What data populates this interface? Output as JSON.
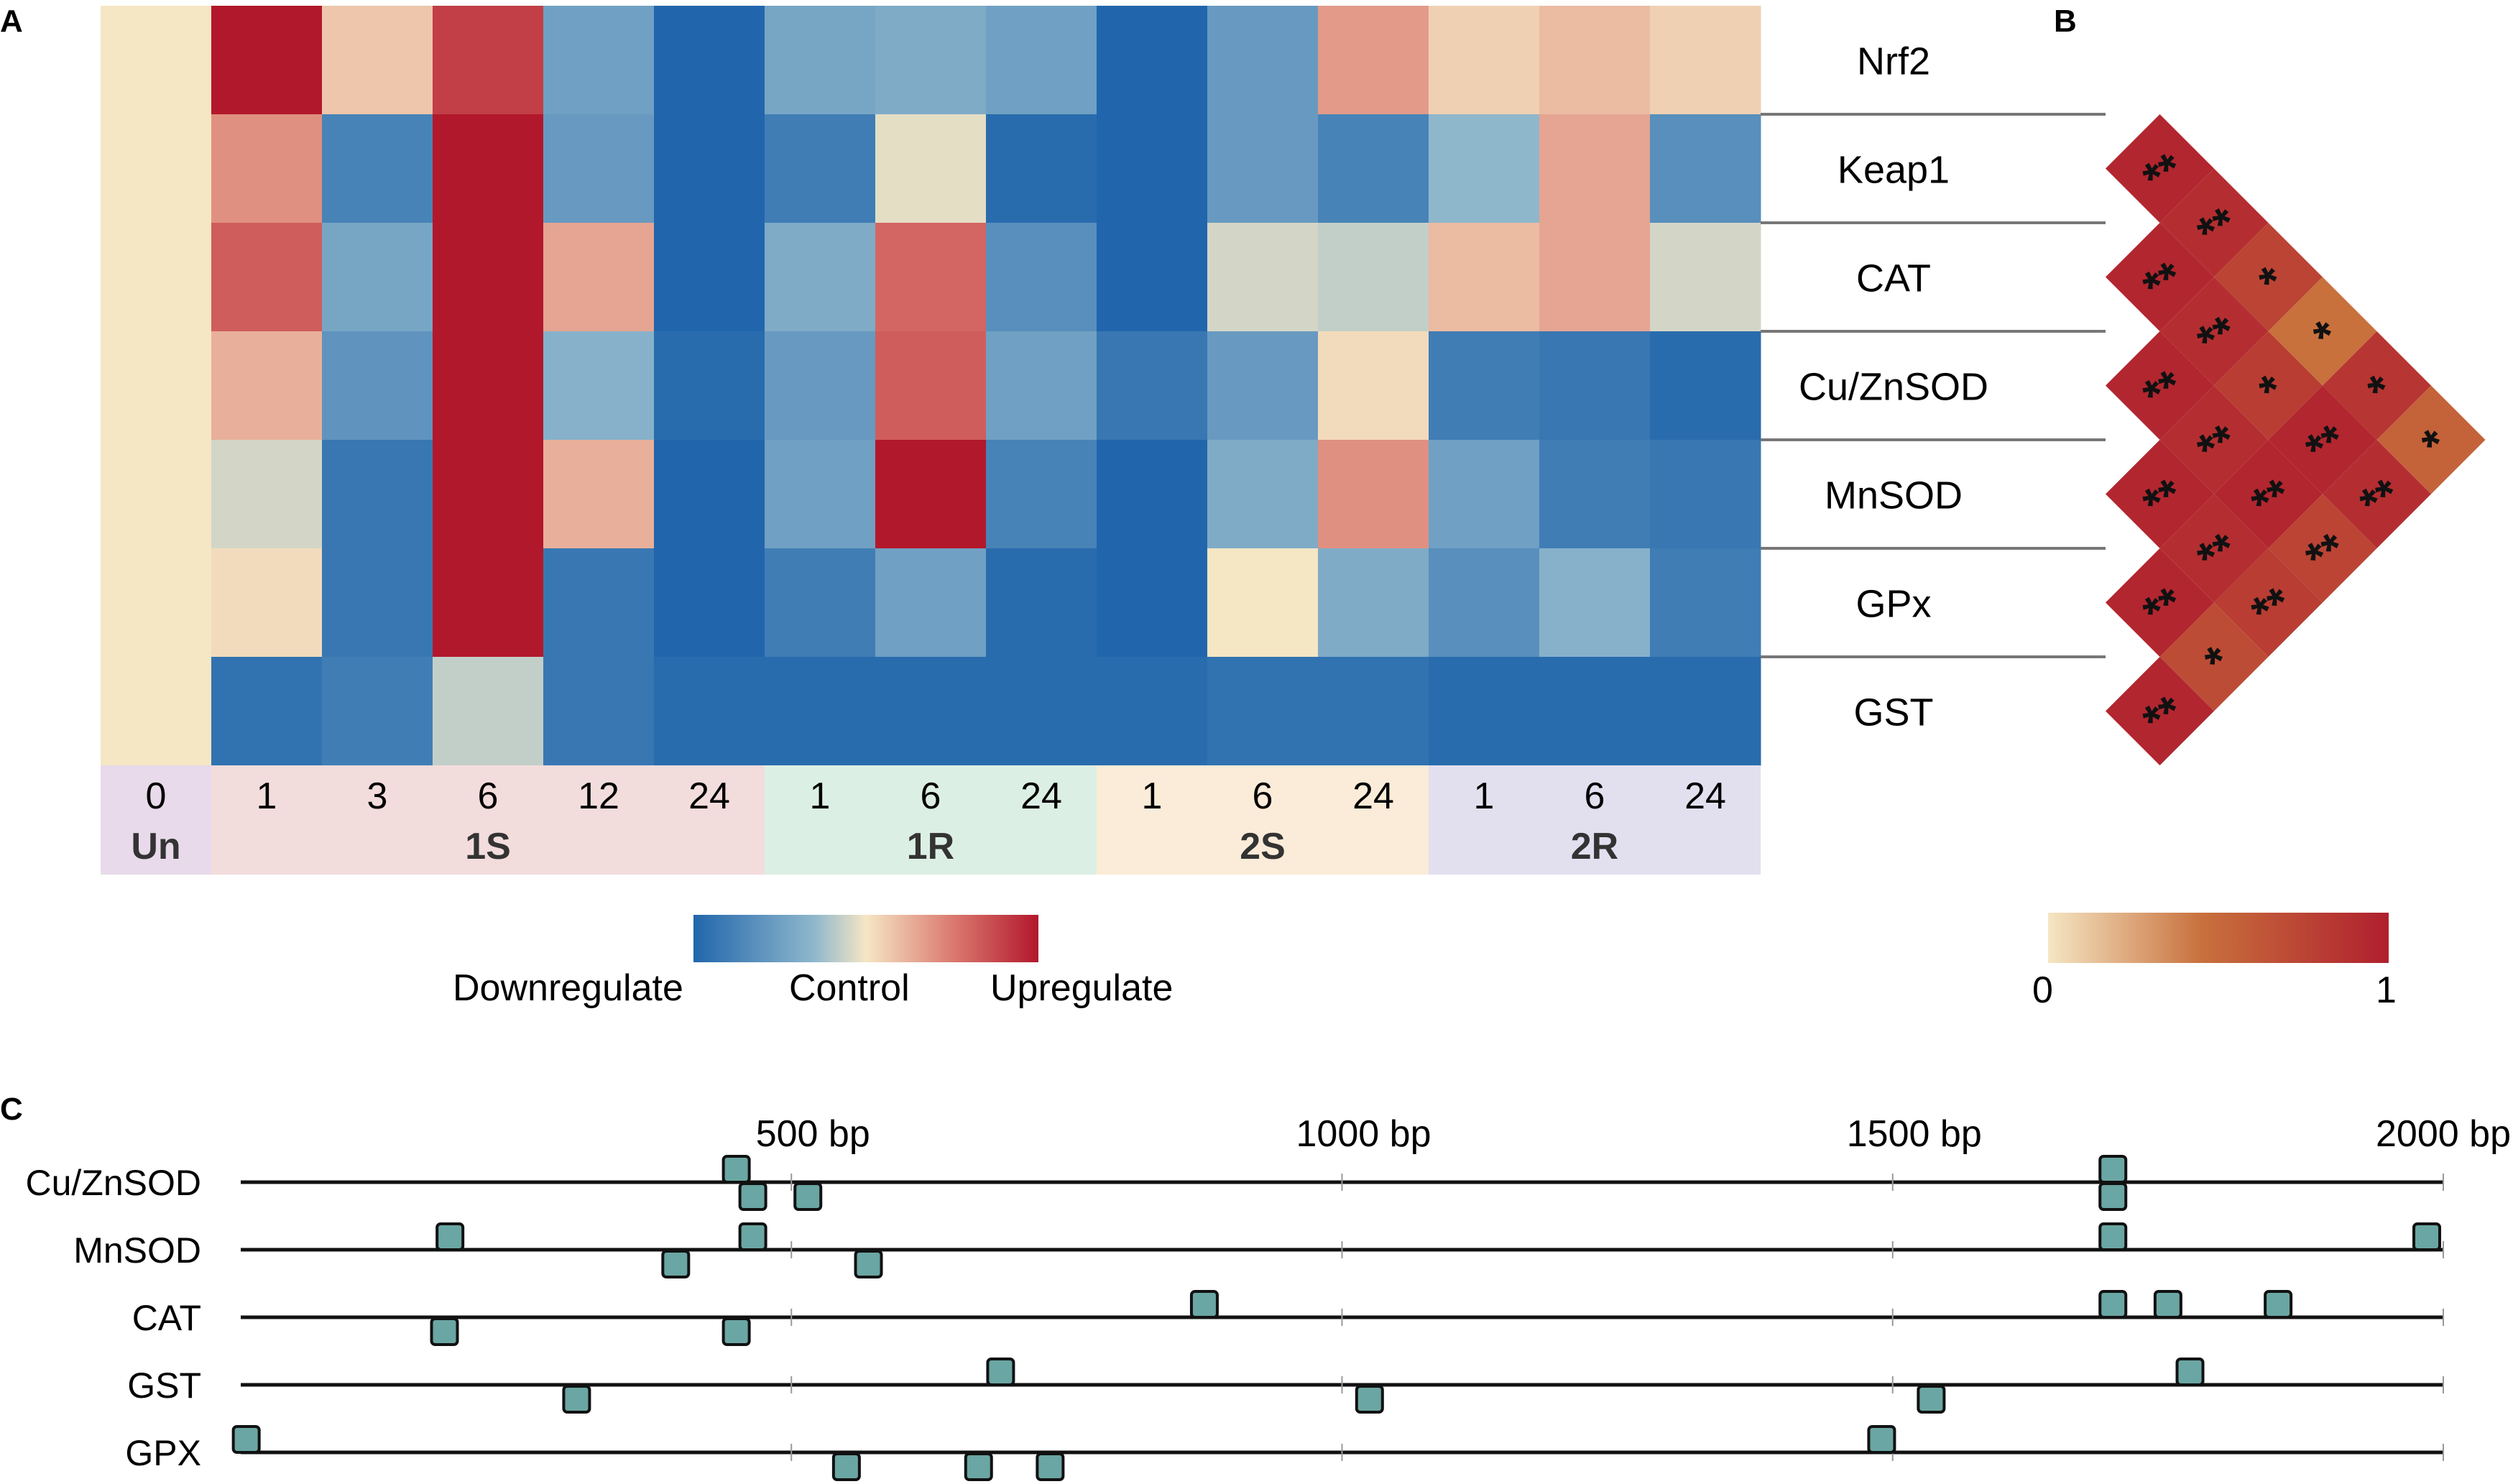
{
  "panels": {
    "a": "A",
    "b": "B",
    "c": "C"
  },
  "heatmap": {
    "genes": [
      "Nrf2",
      "Keap1",
      "CAT",
      "Cu/ZnSOD",
      "MnSOD",
      "GPx",
      "GST"
    ],
    "columns": [
      {
        "time": "0",
        "group": "Un"
      },
      {
        "time": "1",
        "group": "1S"
      },
      {
        "time": "3",
        "group": "1S"
      },
      {
        "time": "6",
        "group": "1S"
      },
      {
        "time": "12",
        "group": "1S"
      },
      {
        "time": "24",
        "group": "1S"
      },
      {
        "time": "1",
        "group": "1R"
      },
      {
        "time": "6",
        "group": "1R"
      },
      {
        "time": "24",
        "group": "1R"
      },
      {
        "time": "1",
        "group": "2S"
      },
      {
        "time": "6",
        "group": "2S"
      },
      {
        "time": "24",
        "group": "2S"
      },
      {
        "time": "1",
        "group": "2R"
      },
      {
        "time": "6",
        "group": "2R"
      },
      {
        "time": "24",
        "group": "2R"
      }
    ],
    "groups": [
      {
        "name": "Un",
        "start": 0,
        "end": 0,
        "color": "#e8daea"
      },
      {
        "name": "1S",
        "start": 1,
        "end": 5,
        "color": "#f3dcdc"
      },
      {
        "name": "1R",
        "start": 6,
        "end": 8,
        "color": "#dcefe4"
      },
      {
        "name": "2S",
        "start": 9,
        "end": 11,
        "color": "#fbecd9"
      },
      {
        "name": "2R",
        "start": 12,
        "end": 14,
        "color": "#e2e0ef"
      }
    ],
    "values": [
      [
        0,
        1.0,
        0.15,
        0.8,
        -0.5,
        -1.0,
        -0.45,
        -0.4,
        -0.5,
        -1.0,
        -0.55,
        0.35,
        0.1,
        0.2,
        0.1
      ],
      [
        0,
        0.4,
        -0.75,
        1.0,
        -0.55,
        -1.0,
        -0.8,
        -0.05,
        -0.95,
        -1.0,
        -0.55,
        -0.75,
        -0.3,
        0.3,
        -0.65
      ],
      [
        0,
        0.65,
        -0.45,
        1.0,
        0.3,
        -1.0,
        -0.4,
        0.6,
        -0.65,
        -1.0,
        -0.1,
        -0.15,
        0.2,
        0.3,
        -0.1
      ],
      [
        0,
        0.25,
        -0.6,
        1.0,
        -0.35,
        -0.95,
        -0.55,
        0.65,
        -0.5,
        -0.85,
        -0.55,
        0.05,
        -0.8,
        -0.85,
        -0.95
      ],
      [
        0,
        -0.1,
        -0.85,
        1.0,
        0.25,
        -1.0,
        -0.5,
        1.0,
        -0.75,
        -1.0,
        -0.4,
        0.4,
        -0.5,
        -0.8,
        -0.85
      ],
      [
        0,
        0.05,
        -0.85,
        1.0,
        -0.85,
        -1.0,
        -0.8,
        -0.5,
        -0.95,
        -1.0,
        0.0,
        -0.4,
        -0.65,
        -0.35,
        -0.8
      ],
      [
        0,
        -0.9,
        -0.8,
        -0.15,
        -0.85,
        -0.95,
        -0.95,
        -0.95,
        -0.95,
        -0.95,
        -0.9,
        -0.9,
        -0.95,
        -0.95,
        -0.95
      ]
    ],
    "legend": {
      "low": "Downregulate",
      "mid": "Control",
      "high": "Upregulate"
    }
  },
  "correlation": {
    "cells": [
      {
        "r": 0,
        "c": 0,
        "v": 0.95,
        "sig": "**"
      },
      {
        "r": 0,
        "c": 1,
        "v": 0.9,
        "sig": "**"
      },
      {
        "r": 0,
        "c": 2,
        "v": 0.75,
        "sig": "*"
      },
      {
        "r": 0,
        "c": 3,
        "v": 0.45,
        "sig": "*"
      },
      {
        "r": 0,
        "c": 4,
        "v": 0.85,
        "sig": "*"
      },
      {
        "r": 0,
        "c": 5,
        "v": 0.55,
        "sig": "*"
      },
      {
        "r": 1,
        "c": 0,
        "v": 0.95,
        "sig": "**"
      },
      {
        "r": 1,
        "c": 1,
        "v": 0.9,
        "sig": "**"
      },
      {
        "r": 1,
        "c": 2,
        "v": 0.8,
        "sig": "*"
      },
      {
        "r": 1,
        "c": 3,
        "v": 0.95,
        "sig": "**"
      },
      {
        "r": 1,
        "c": 4,
        "v": 0.9,
        "sig": "**"
      },
      {
        "r": 2,
        "c": 0,
        "v": 0.95,
        "sig": "**"
      },
      {
        "r": 2,
        "c": 1,
        "v": 0.9,
        "sig": "**"
      },
      {
        "r": 2,
        "c": 2,
        "v": 0.95,
        "sig": "**"
      },
      {
        "r": 2,
        "c": 3,
        "v": 0.75,
        "sig": "**"
      },
      {
        "r": 3,
        "c": 0,
        "v": 0.95,
        "sig": "**"
      },
      {
        "r": 3,
        "c": 1,
        "v": 0.9,
        "sig": "**"
      },
      {
        "r": 3,
        "c": 2,
        "v": 0.8,
        "sig": "**"
      },
      {
        "r": 4,
        "c": 0,
        "v": 0.95,
        "sig": "**"
      },
      {
        "r": 4,
        "c": 1,
        "v": 0.7,
        "sig": "*"
      },
      {
        "r": 5,
        "c": 0,
        "v": 0.95,
        "sig": "**"
      }
    ],
    "legend": {
      "min": "0",
      "max": "1"
    }
  },
  "promoter_map": {
    "ticks": [
      {
        "bp": 500,
        "label": "500 bp"
      },
      {
        "bp": 1000,
        "label": "1000 bp"
      },
      {
        "bp": 1500,
        "label": "1500 bp"
      },
      {
        "bp": 2000,
        "label": "2000 bp"
      }
    ],
    "tracks": [
      {
        "name": "Cu/ZnSOD",
        "above": [
          450,
          1700
        ],
        "below": [
          465,
          515,
          1700
        ]
      },
      {
        "name": "MnSOD",
        "above": [
          190,
          465,
          1700,
          1985
        ],
        "below": [
          395,
          570
        ]
      },
      {
        "name": "CAT",
        "above": [
          875,
          1700,
          1750,
          1850
        ],
        "below": [
          185,
          450
        ]
      },
      {
        "name": "GST",
        "above": [
          690,
          1770
        ],
        "below": [
          305,
          1025,
          1535
        ]
      },
      {
        "name": "GPX",
        "above": [
          5,
          1490
        ],
        "below": [
          550,
          670,
          735
        ]
      }
    ],
    "colors": {
      "box": "#6aa6a3",
      "line": "#111111"
    }
  }
}
